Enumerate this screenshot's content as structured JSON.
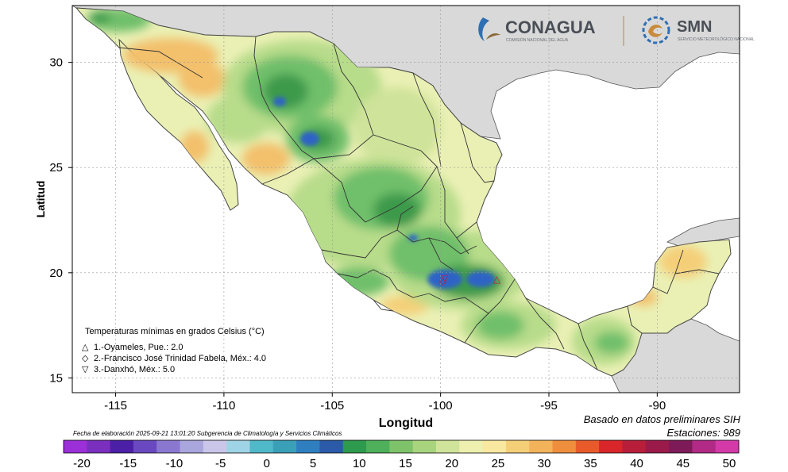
{
  "title_top": "",
  "axes": {
    "xlabel": "Longitud",
    "ylabel": "Latitud",
    "xticks": [
      -115,
      -110,
      -105,
      -100,
      -95,
      -90
    ],
    "yticks": [
      15,
      20,
      25,
      30
    ],
    "xrange": [
      -117,
      -86.2
    ],
    "yrange": [
      14.3,
      32.7
    ]
  },
  "logos": {
    "conagua": {
      "name": "CONAGUA",
      "subtitle": "COMISIÓN NACIONAL DEL AGUA"
    },
    "smn": {
      "name": "SMN",
      "subtitle": "SERVICIO METEOROLÓGICO NACIONAL"
    }
  },
  "legend": {
    "title": "Temperaturas mínimas en grados Celsius (°C)",
    "items": [
      {
        "symbol": "△",
        "text": "1.-Oyameles, Pue.: 2.0"
      },
      {
        "symbol": "◇",
        "text": "2.-Francisco José Trinidad Fabela, Méx.: 4.0"
      },
      {
        "symbol": "▽",
        "text": "3.-Danxhó, Méx.: 5.0"
      }
    ]
  },
  "footer": {
    "date_note": "Fecha de elaboración 2025-09-21 13:01:20 Subgerencia de Climatología y Servicios Climáticos",
    "source": "Basado en datos preliminares SIH",
    "stations": "Estaciones:  989"
  },
  "colorbar": {
    "labels": [
      "-20",
      "-15",
      "-10",
      "-5",
      "0",
      "5",
      "10",
      "15",
      "20",
      "25",
      "30",
      "35",
      "40",
      "45",
      "50"
    ],
    "colors": [
      "#9b2fd8",
      "#7a2fbf",
      "#4b1fa6",
      "#6a49c0",
      "#8a78d0",
      "#a9a6dd",
      "#c9c6ea",
      "#9fd4e6",
      "#4fb8c9",
      "#3aa0b8",
      "#2f7fc0",
      "#2a5aa8",
      "#2e9a4e",
      "#4eb05a",
      "#7ec36a",
      "#a9d47e",
      "#cfe39a",
      "#eef0b0",
      "#f8e8a0",
      "#f5cf78",
      "#f3b35a",
      "#ef8f3e",
      "#e85a2a",
      "#d9262a",
      "#b81e3a",
      "#9a1a4a",
      "#7e1a58",
      "#b02a86",
      "#d33aa8"
    ]
  },
  "colors": {
    "land": "#e9f0b8",
    "neighbor_land": "#d9d9d9",
    "ocean": "#ffffff",
    "green_low": "#b7dc8a",
    "green_mid": "#6fbf6a",
    "green_high": "#3c9a4c",
    "orange": "#f3c06c",
    "cold_blue": "#2d63c6",
    "warm_red": "#d63048"
  },
  "markers": [
    {
      "id": 1,
      "symbol": "△",
      "lon": -97.4,
      "lat": 19.7
    },
    {
      "id": 2,
      "symbol": "◇",
      "lon": -99.9,
      "lat": 19.6
    },
    {
      "id": 3,
      "symbol": "▽",
      "lon": -99.8,
      "lat": 19.75
    }
  ]
}
